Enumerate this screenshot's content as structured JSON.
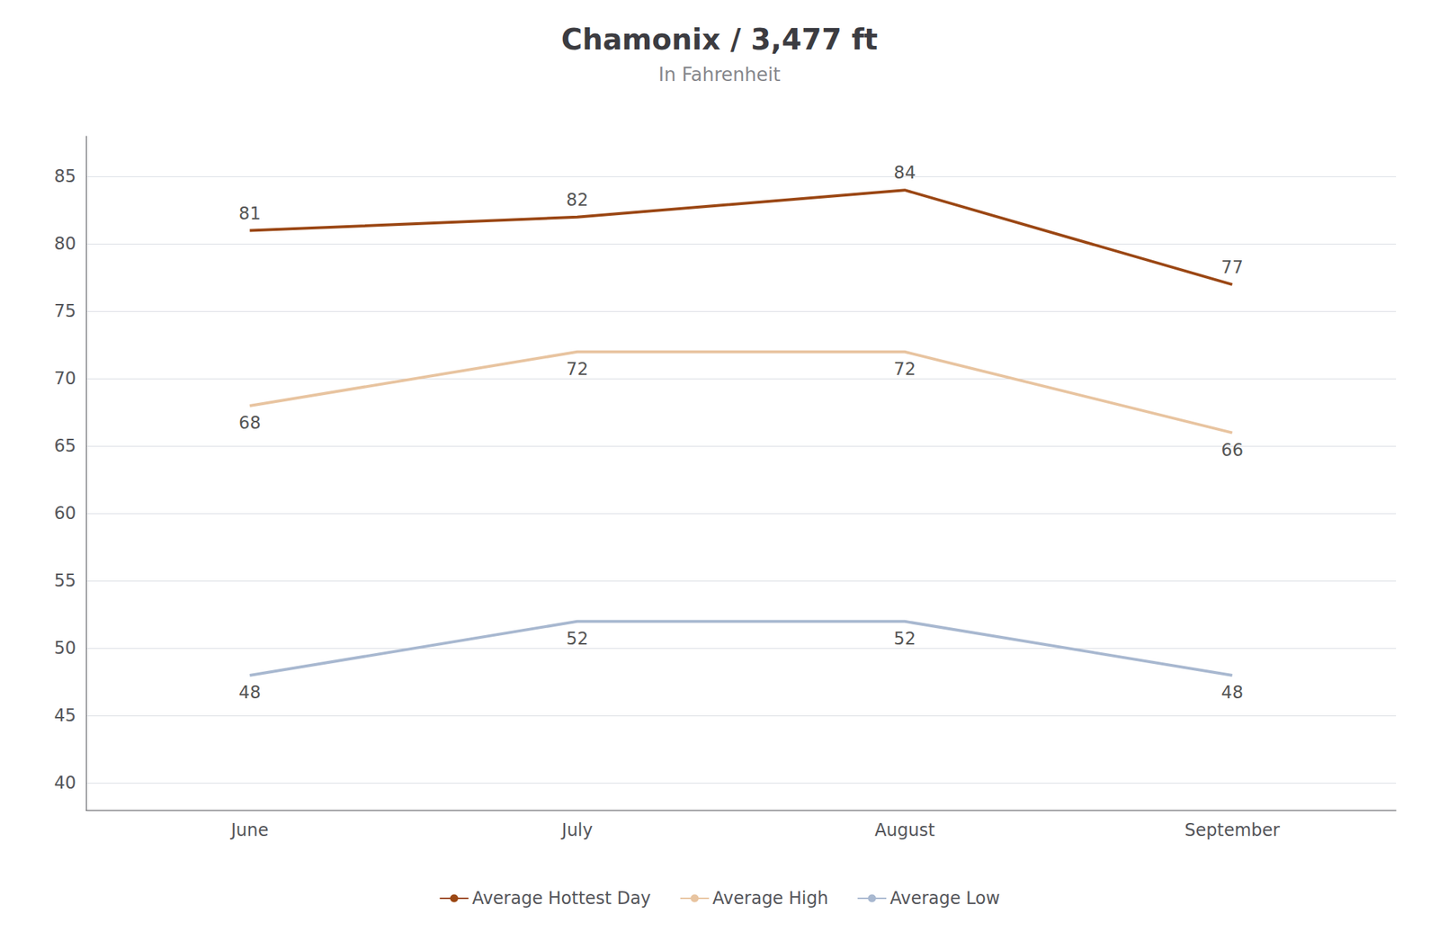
{
  "chart_data": {
    "type": "line",
    "title": "Chamonix / 3,477 ft",
    "subtitle": "In Fahrenheit",
    "categories": [
      "June",
      "July",
      "August",
      "September"
    ],
    "series": [
      {
        "name": "Average Hottest Day",
        "color": "#9B4714",
        "values": [
          81,
          82,
          84,
          77
        ]
      },
      {
        "name": "Average High",
        "color": "#E8C4A0",
        "values": [
          68,
          72,
          72,
          66
        ]
      },
      {
        "name": "Average Low",
        "color": "#A8B8D0",
        "values": [
          48,
          52,
          52,
          48
        ]
      }
    ],
    "ylim": [
      38,
      88
    ],
    "yticks": [
      40,
      45,
      50,
      55,
      60,
      65,
      70,
      75,
      80,
      85
    ],
    "grid": true,
    "legend": "bottom",
    "data_labels": true
  }
}
